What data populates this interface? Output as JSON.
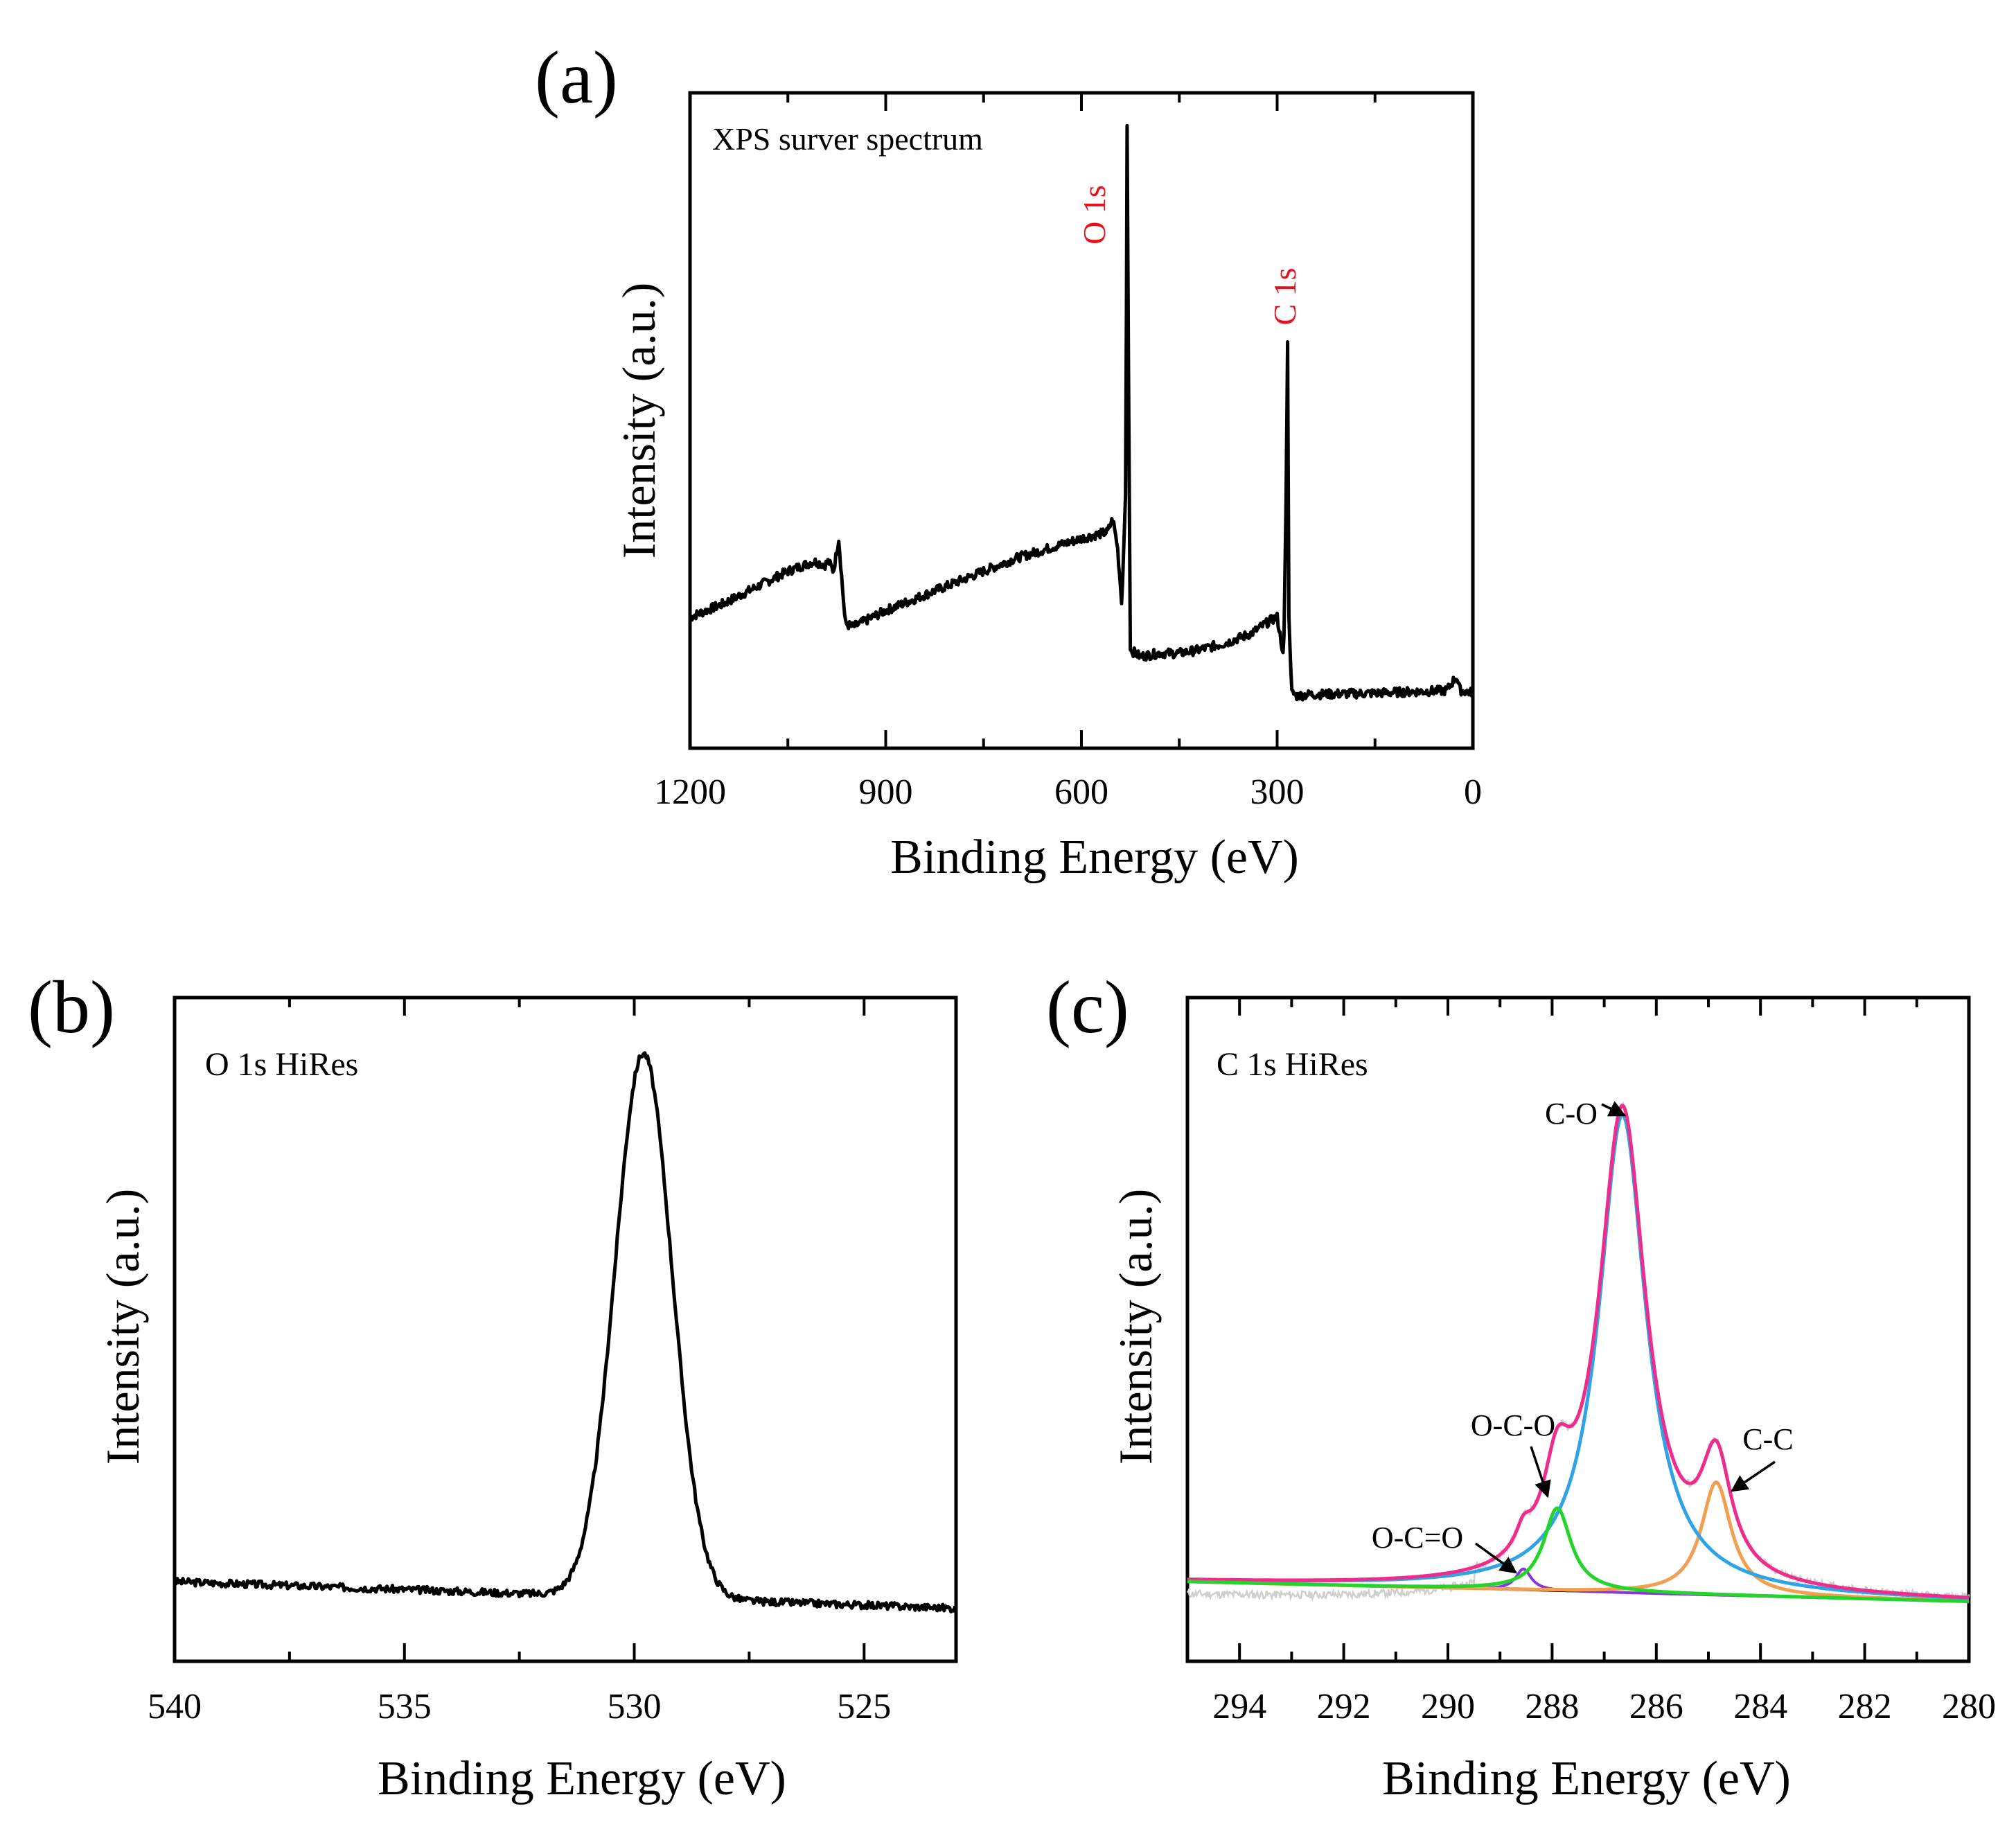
{
  "chart_data": [
    {
      "id": "a",
      "type": "line",
      "panel_label": "(a)",
      "inset_title": "XPS surver spectrum",
      "xlabel": "Binding Energy (eV)",
      "ylabel": "Intensity (a.u.)",
      "xlim": [
        1200,
        0
      ],
      "ylim": [
        0,
        100
      ],
      "xticks": [
        1200,
        900,
        600,
        300,
        0
      ],
      "xtick_labels": [
        "1200",
        "900",
        "600",
        "300",
        "0"
      ],
      "peak_labels": [
        {
          "text": "O 1s",
          "x": 531,
          "y": 87,
          "color": "#e8101c"
        },
        {
          "text": "C 1s",
          "x": 285,
          "y": 69,
          "color": "#e8101c"
        }
      ],
      "series": [
        {
          "name": "survey",
          "color": "#000000",
          "x": [
            1200,
            1150,
            1100,
            1050,
            1010,
            993,
            988,
            980,
            972,
            962,
            950,
            900,
            800,
            700,
            600,
            560,
            552,
            545,
            538,
            532,
            530,
            528,
            525,
            510,
            480,
            450,
            420,
            380,
            340,
            310,
            300,
            295,
            290,
            286,
            284,
            282,
            278,
            270,
            250,
            200,
            150,
            100,
            40,
            25,
            20,
            15,
            0
          ],
          "y": [
            20,
            22,
            24.5,
            27,
            28.5,
            28,
            28.5,
            27,
            32,
            19,
            18.5,
            21,
            25,
            29,
            32,
            33,
            35,
            31,
            22,
            40,
            95,
            60,
            15,
            14,
            14.5,
            14.5,
            15,
            16,
            17.5,
            19.5,
            20,
            17,
            14,
            40,
            62,
            20,
            8.5,
            8,
            8.2,
            8.3,
            8.4,
            8.6,
            8.8,
            11,
            8.9,
            8.7,
            8.5
          ]
        }
      ]
    },
    {
      "id": "b",
      "type": "line",
      "panel_label": "(b)",
      "inset_title": "O 1s HiRes",
      "xlabel": "Binding Energy (eV)",
      "ylabel": "Intensity (a.u.)",
      "xlim": [
        540,
        523
      ],
      "ylim": [
        0,
        100
      ],
      "xticks": [
        540,
        535,
        530,
        525
      ],
      "xtick_labels": [
        "540",
        "535",
        "530",
        "525"
      ],
      "series": [
        {
          "name": "O 1s",
          "color": "#000000",
          "baseline_start": 12,
          "baseline_end": 8,
          "peak_center": 529.8,
          "peak_height": 82,
          "peak_sigma": 0.62
        }
      ]
    },
    {
      "id": "c",
      "type": "line",
      "panel_label": "(c)",
      "inset_title": "C 1s HiRes",
      "xlabel": "Binding Energy (eV)",
      "ylabel": "Intensity (a.u.)",
      "xlim": [
        295,
        280
      ],
      "ylim": [
        0,
        100
      ],
      "xticks": [
        294,
        292,
        290,
        288,
        286,
        284,
        282,
        280
      ],
      "xtick_labels": [
        "294",
        "292",
        "290",
        "288",
        "286",
        "284",
        "282",
        "280"
      ],
      "baseline_start": 12,
      "baseline_end": 9,
      "components": [
        {
          "name": "C-O",
          "center": 286.65,
          "height": 72,
          "width": 0.55,
          "color": "#2fa3e6"
        },
        {
          "name": "O-C-O",
          "center": 287.9,
          "height": 12.5,
          "width": 0.32,
          "color": "#24d42a"
        },
        {
          "name": "C-C",
          "center": 284.85,
          "height": 17,
          "width": 0.35,
          "color": "#f0a050"
        },
        {
          "name": "O-C=O",
          "center": 288.55,
          "height": 3.2,
          "width": 0.18,
          "color": "#8a34e0"
        }
      ],
      "envelope_color": "#ee2c8c",
      "raw_color": "#cfcfcf",
      "annotations": [
        {
          "text": "C-O",
          "target_x": 286.62,
          "target_y": 91
        },
        {
          "text": "O-C-O",
          "target_x": 287.92,
          "target_y": 27
        },
        {
          "text": "C-C",
          "target_x": 284.78,
          "target_y": 33
        },
        {
          "text": "O-C=O",
          "target_x": 288.48,
          "target_y": 16
        }
      ]
    }
  ]
}
